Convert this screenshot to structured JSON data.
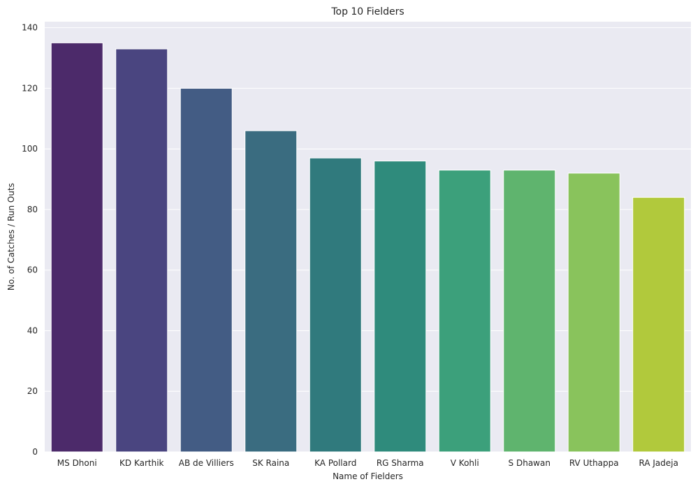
{
  "chart_data": {
    "type": "bar",
    "title": "Top 10 Fielders",
    "xlabel": "Name of Fielders",
    "ylabel": "No. of Catches / Run Outs",
    "categories": [
      "MS Dhoni",
      "KD Karthik",
      "AB de Villiers",
      "SK Raina",
      "KA Pollard",
      "RG Sharma",
      "V Kohli",
      "S Dhawan",
      "RV Uthappa",
      "RA Jadeja"
    ],
    "values": [
      135,
      133,
      120,
      106,
      97,
      96,
      93,
      93,
      92,
      84
    ],
    "colors": [
      "#4c2a6a",
      "#4a4580",
      "#435c84",
      "#3a6c80",
      "#307a7d",
      "#2f8b7c",
      "#3ca07b",
      "#5fb46e",
      "#89c35c",
      "#b1c93c"
    ],
    "ylim": [
      0,
      142
    ],
    "yticks": [
      0,
      20,
      40,
      60,
      80,
      100,
      120,
      140
    ],
    "grid": true,
    "background": "#eaeaf2",
    "grid_color": "#ffffff"
  }
}
